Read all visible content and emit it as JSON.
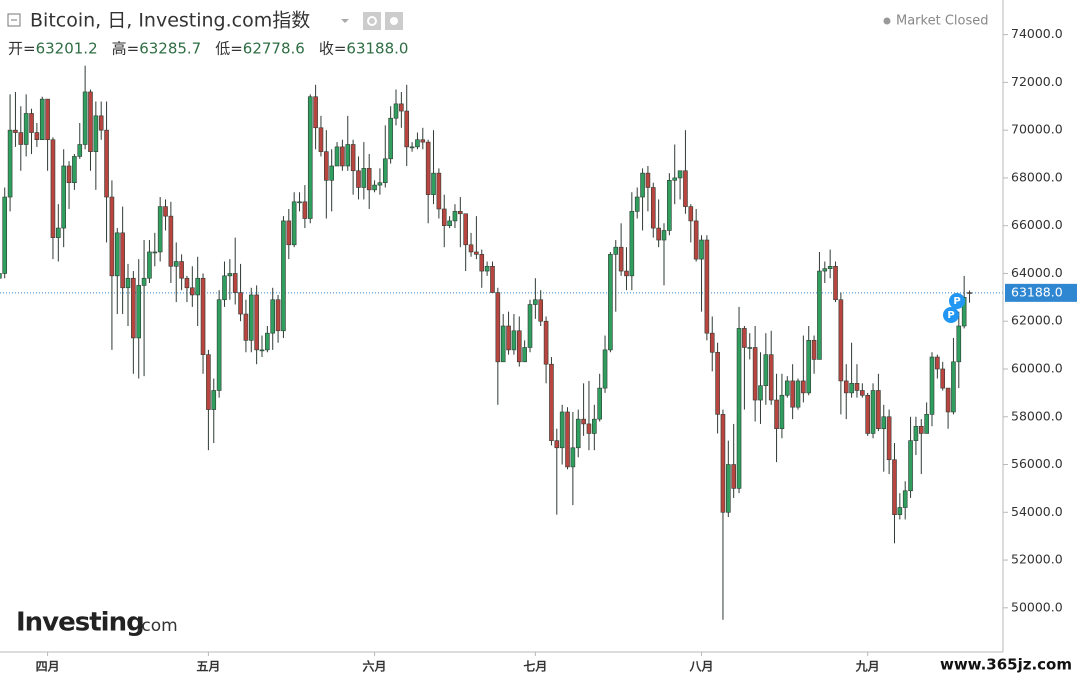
{
  "chart_data": {
    "type": "candlestick",
    "title": "Bitcoin, 日, Investing.com指数",
    "status": "Market Closed",
    "ohlc": {
      "labels": [
        "开=",
        "高=",
        "低=",
        "收="
      ],
      "values": [
        "63201.2",
        "63285.7",
        "62778.6",
        "63188.0"
      ]
    },
    "categories": [
      null,
      null,
      null,
      null,
      null,
      null,
      null,
      null,
      null,
      null,
      "四月",
      null,
      null,
      null,
      null,
      null,
      null,
      null,
      null,
      null,
      null,
      null,
      null,
      null,
      null,
      null,
      null,
      null,
      null,
      null,
      null,
      null,
      null,
      null,
      null,
      null,
      null,
      null,
      null,
      null,
      "五月",
      null,
      null,
      null,
      null,
      null,
      null,
      null,
      null,
      null,
      null,
      null,
      null,
      null,
      null,
      null,
      null,
      null,
      null,
      null,
      null,
      null,
      null,
      null,
      null,
      null,
      null,
      null,
      null,
      null,
      null,
      "六月",
      null,
      null,
      null,
      null,
      null,
      null,
      null,
      null,
      null,
      null,
      null,
      null,
      null,
      null,
      null,
      null,
      null,
      null,
      null,
      null,
      null,
      null,
      null,
      null,
      null,
      null,
      null,
      null,
      null,
      "七月",
      null,
      null,
      null,
      null,
      null,
      null,
      null,
      null,
      null,
      null,
      null,
      null,
      null,
      null,
      null,
      null,
      null,
      null,
      null,
      null,
      null,
      null,
      null,
      null,
      null,
      null,
      null,
      null,
      null,
      null,
      "八月",
      null,
      null,
      null,
      null,
      null,
      null,
      null,
      null,
      null,
      null,
      null,
      null,
      null,
      null,
      null,
      null,
      null,
      null,
      null,
      null,
      null,
      null,
      null,
      null,
      null,
      null,
      null,
      null,
      null,
      null,
      "九月",
      null,
      null,
      null,
      null,
      null,
      null,
      null,
      null,
      null,
      null,
      null,
      null,
      null,
      null,
      null,
      null,
      null,
      null,
      null
    ],
    "open": [
      65500,
      63800,
      64000,
      67200,
      70000,
      69900,
      69400,
      70700,
      69900,
      69600,
      71300,
      69600,
      65500,
      65900,
      68500,
      67800,
      68900,
      69400,
      71600,
      69100,
      70600,
      70000,
      67200,
      63900,
      65700,
      63400,
      63800,
      61300,
      63500,
      63800,
      64900,
      64900,
      66800,
      66400,
      64300,
      64500,
      63800,
      63400,
      63100,
      63800,
      60600,
      58300,
      59100,
      62900,
      63900,
      64000,
      63200,
      62300,
      61200,
      63100,
      60800,
      60800,
      61500,
      62900,
      61600,
      66200,
      65200,
      67000,
      67000,
      66300,
      71400,
      70100,
      69100,
      67900,
      68500,
      69300,
      68500,
      69400,
      68300,
      67600,
      68400,
      67500,
      67700,
      67800,
      68800,
      70500,
      71100,
      70800,
      69300,
      69300,
      69600,
      69500,
      67300,
      68200,
      66700,
      66000,
      66200,
      66600,
      66500,
      65200,
      64900,
      64800,
      64100,
      64300,
      63200,
      60300,
      61800,
      60800,
      61600,
      60300,
      60900,
      62700,
      62900,
      62000,
      60200,
      57000,
      56700,
      58200,
      55900,
      56700,
      57900,
      57700,
      57300,
      57900,
      59200,
      60800,
      64800,
      65100,
      64100,
      63900,
      66600,
      67200,
      68200,
      67600,
      65900,
      65400,
      65800,
      67900,
      68000,
      68300,
      66800,
      66200,
      64600,
      65400,
      61500,
      60700,
      58100,
      54000,
      56000,
      55000,
      61700,
      60900,
      60900,
      58700,
      59300,
      60600,
      58700,
      57500,
      58900,
      59500,
      58400,
      59500,
      59000,
      61200,
      60400,
      64100,
      64200,
      64300,
      62900,
      59500,
      59000,
      59400,
      59100,
      58900,
      57300,
      59100,
      57500,
      58000,
      56200,
      53900,
      54200,
      54900,
      57000,
      57600,
      57300,
      58100,
      60500,
      60000,
      59200,
      58200,
      60300,
      61800,
      63201.2
    ],
    "high": [
      66600,
      65900,
      67600,
      71500,
      71600,
      71000,
      71500,
      70900,
      70300,
      71400,
      71300,
      69700,
      66900,
      69200,
      68700,
      69000,
      70300,
      72700,
      71700,
      71200,
      71200,
      71200,
      67900,
      65900,
      66800,
      64400,
      64100,
      64600,
      65400,
      65400,
      65700,
      67200,
      67100,
      67000,
      65300,
      64800,
      63900,
      64300,
      64700,
      64000,
      60800,
      59600,
      63300,
      64500,
      64600,
      65500,
      64400,
      62900,
      63400,
      63500,
      61400,
      61800,
      63400,
      63100,
      66400,
      66700,
      67400,
      67400,
      67700,
      71500,
      71900,
      70600,
      70000,
      69200,
      69500,
      69600,
      70600,
      69600,
      68900,
      69500,
      69000,
      67900,
      68400,
      70200,
      71000,
      71700,
      71600,
      71900,
      69500,
      69900,
      70100,
      69600,
      70000,
      68400,
      67300,
      66400,
      66900,
      67200,
      66500,
      65700,
      66400,
      65000,
      64500,
      64500,
      63400,
      62300,
      62400,
      62300,
      62200,
      61200,
      62900,
      63800,
      63300,
      62200,
      60500,
      57500,
      58500,
      58400,
      58200,
      58300,
      59400,
      59500,
      58500,
      59800,
      61400,
      64900,
      65400,
      66100,
      65100,
      67400,
      67600,
      68400,
      68500,
      67800,
      67100,
      66100,
      68200,
      69400,
      68300,
      70000,
      66900,
      66700,
      65600,
      65600,
      62200,
      61100,
      58300,
      57000,
      57700,
      62600,
      61800,
      61500,
      61800,
      60700,
      61500,
      61600,
      59800,
      59800,
      59700,
      60200,
      59600,
      61400,
      61800,
      61400,
      64900,
      64500,
      65000,
      64500,
      63200,
      60200,
      61100,
      60200,
      59400,
      59000,
      59400,
      59800,
      58500,
      58300,
      56900,
      54800,
      55300,
      58000,
      58000,
      57900,
      58600,
      60700,
      60600,
      60300,
      59200,
      61300,
      62400,
      63900,
      63285.7
    ],
    "low": [
      62700,
      63000,
      63800,
      66600,
      69300,
      68300,
      68900,
      69000,
      69300,
      69600,
      68300,
      64600,
      64500,
      65100,
      66700,
      67500,
      68800,
      69200,
      68300,
      67500,
      69600,
      65300,
      60800,
      62300,
      62300,
      61800,
      59800,
      59600,
      59700,
      63600,
      64300,
      64500,
      65800,
      63600,
      62800,
      63300,
      62800,
      62600,
      61800,
      59800,
      56600,
      56900,
      58800,
      62600,
      62900,
      62700,
      62000,
      60700,
      60700,
      60200,
      60500,
      60700,
      60800,
      61100,
      61300,
      64600,
      65100,
      66600,
      65900,
      66100,
      69200,
      68900,
      66300,
      66600,
      68500,
      68300,
      68300,
      67300,
      67100,
      67100,
      66700,
      67400,
      67300,
      67600,
      68600,
      70200,
      70100,
      68500,
      69100,
      69200,
      69200,
      66100,
      66900,
      66300,
      65100,
      65900,
      65900,
      65100,
      64100,
      64700,
      64600,
      63400,
      63900,
      63200,
      58500,
      60300,
      60600,
      60600,
      60100,
      60300,
      60700,
      62100,
      61800,
      59400,
      56800,
      53900,
      56000,
      55800,
      54300,
      56300,
      57200,
      56600,
      56600,
      57800,
      59000,
      60700,
      62400,
      63900,
      63300,
      63300,
      66300,
      65800,
      66600,
      65500,
      65100,
      63500,
      65600,
      66900,
      67100,
      66500,
      65300,
      64500,
      62400,
      61200,
      59900,
      57300,
      49500,
      53800,
      54600,
      54800,
      58300,
      60400,
      57800,
      57700,
      58500,
      58500,
      56100,
      57100,
      58800,
      57900,
      58300,
      58600,
      58900,
      59800,
      60400,
      63600,
      63800,
      62800,
      58100,
      57900,
      58800,
      58800,
      58800,
      57200,
      57100,
      57400,
      55700,
      55600,
      52700,
      53700,
      53700,
      54600,
      56400,
      55600,
      57300,
      57600,
      59600,
      59100,
      57500,
      58100,
      59200,
      61700,
      62778.6
    ],
    "close": [
      63800,
      64000,
      67200,
      70000,
      69900,
      69400,
      70700,
      69900,
      69600,
      71300,
      69600,
      65500,
      65900,
      68500,
      67800,
      68900,
      69400,
      71600,
      69100,
      70600,
      70000,
      67200,
      63900,
      65700,
      63400,
      63800,
      61300,
      63500,
      63800,
      64900,
      64900,
      66800,
      66400,
      64300,
      64500,
      63800,
      63400,
      63100,
      63800,
      60600,
      58300,
      59100,
      62900,
      63900,
      64000,
      63200,
      62300,
      61200,
      63100,
      60800,
      60800,
      61500,
      62900,
      61600,
      66200,
      65200,
      67000,
      67000,
      66300,
      71400,
      70100,
      69100,
      67900,
      68500,
      69300,
      68500,
      69400,
      68300,
      67600,
      68400,
      67500,
      67700,
      67800,
      68800,
      70500,
      71100,
      70800,
      69300,
      69300,
      69600,
      69500,
      67300,
      68200,
      66700,
      66000,
      66200,
      66600,
      66500,
      65200,
      64900,
      64800,
      64100,
      64300,
      63200,
      60300,
      61800,
      60800,
      61600,
      60300,
      60900,
      62700,
      62900,
      62000,
      60200,
      57000,
      56700,
      58200,
      55900,
      56700,
      57900,
      57700,
      57300,
      57900,
      59200,
      60800,
      64800,
      65100,
      64100,
      63900,
      66600,
      67200,
      68200,
      67600,
      65900,
      65400,
      65800,
      67900,
      68000,
      68300,
      66800,
      66200,
      64600,
      65400,
      61500,
      60700,
      58100,
      54000,
      56000,
      55000,
      61700,
      60900,
      60900,
      58700,
      59300,
      60600,
      58700,
      57500,
      58900,
      59500,
      58400,
      59500,
      59000,
      61200,
      60400,
      64100,
      64200,
      64300,
      62900,
      59500,
      59000,
      59400,
      59100,
      58900,
      57300,
      59100,
      57500,
      58000,
      56200,
      53900,
      54200,
      54900,
      57000,
      57600,
      57300,
      58100,
      60500,
      60000,
      59200,
      58200,
      60300,
      61800,
      63000,
      63188.0
    ],
    "up_color": "#2f9e5f",
    "down_color": "#b8453f",
    "ylim": [
      48150,
      75450
    ],
    "yticks": [
      {
        "value": 50000,
        "label": "50000.0"
      },
      {
        "value": 52000,
        "label": "52000.0"
      },
      {
        "value": 54000,
        "label": "54000.0"
      },
      {
        "value": 56000,
        "label": "56000.0"
      },
      {
        "value": 58000,
        "label": "58000.0"
      },
      {
        "value": 60000,
        "label": "60000.0"
      },
      {
        "value": 62000,
        "label": "62000.0"
      },
      {
        "value": 64000,
        "label": "64000.0"
      },
      {
        "value": 66000,
        "label": "66000.0"
      },
      {
        "value": 68000,
        "label": "68000.0"
      },
      {
        "value": 70000,
        "label": "70000.0"
      },
      {
        "value": 72000,
        "label": "72000.0"
      },
      {
        "value": 74000,
        "label": "74000.0"
      }
    ],
    "grid": false,
    "last_price": {
      "value": 63188.0,
      "label": "63188.0",
      "color": "#2f86d1"
    },
    "event_markers": [
      {
        "label": "P"
      },
      {
        "label": "P"
      }
    ],
    "logo": {
      "name": "Investing",
      "suffix": ".com"
    },
    "watermark": "www.365jz.com"
  }
}
